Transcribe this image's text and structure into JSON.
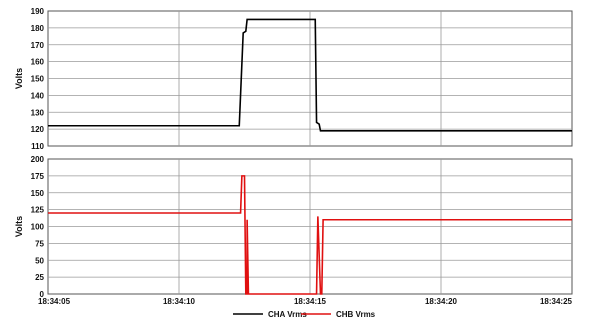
{
  "chart_data": [
    {
      "type": "line",
      "ylabel": "Volts",
      "ylim": [
        110,
        190
      ],
      "yticks": [
        110,
        120,
        130,
        140,
        150,
        160,
        170,
        180,
        190
      ],
      "xlim": [
        "18:34:05",
        "18:34:25"
      ],
      "grid": true,
      "series": [
        {
          "name": "CHA Vrms",
          "color": "#000000",
          "points": [
            [
              "18:34:05.0",
              122
            ],
            [
              "18:34:12.3",
              122
            ],
            [
              "18:34:12.45",
              177
            ],
            [
              "18:34:12.55",
              178
            ],
            [
              "18:34:12.6",
              185
            ],
            [
              "18:34:15.2",
              185
            ],
            [
              "18:34:15.25",
              124
            ],
            [
              "18:34:15.35",
              123
            ],
            [
              "18:34:15.4",
              119
            ],
            [
              "18:34:25.0",
              119
            ]
          ]
        }
      ]
    },
    {
      "type": "line",
      "ylabel": "Volts",
      "ylim": [
        0,
        200
      ],
      "yticks": [
        0,
        25,
        50,
        75,
        100,
        125,
        150,
        175,
        200
      ],
      "xlim": [
        "18:34:05",
        "18:34:25"
      ],
      "xticks": [
        "18:34:05",
        "18:34:10",
        "18:34:15",
        "18:34:20",
        "18:34:25"
      ],
      "grid": true,
      "series": [
        {
          "name": "CHB Vrms",
          "color": "#e01010",
          "points": [
            [
              "18:34:05.0",
              120
            ],
            [
              "18:34:12.35",
              120
            ],
            [
              "18:34:12.4",
              175
            ],
            [
              "18:34:12.5",
              175
            ],
            [
              "18:34:12.55",
              0
            ],
            [
              "18:34:12.6",
              0
            ],
            [
              "18:34:12.6",
              110
            ],
            [
              "18:34:12.65",
              0
            ],
            [
              "18:34:15.25",
              0
            ],
            [
              "18:34:15.3",
              115
            ],
            [
              "18:34:15.4",
              0
            ],
            [
              "18:34:15.45",
              0
            ],
            [
              "18:34:15.5",
              110
            ],
            [
              "18:34:25.0",
              110
            ]
          ]
        }
      ]
    }
  ],
  "legend": {
    "placement": "bottom-center",
    "items": [
      {
        "name": "CHA Vrms",
        "color": "#000000"
      },
      {
        "name": "CHB Vrms",
        "color": "#e01010"
      }
    ]
  }
}
